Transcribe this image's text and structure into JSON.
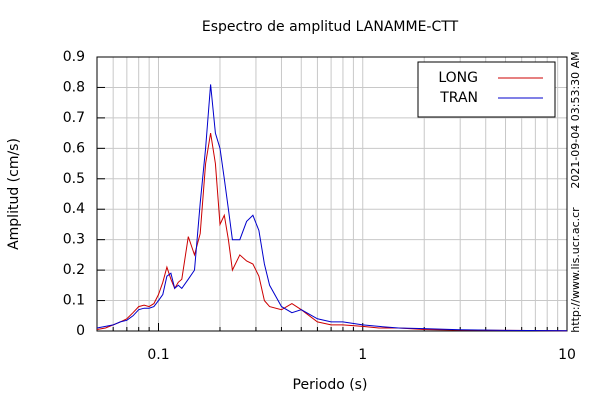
{
  "chart_data": {
    "type": "line",
    "title": "Espectro de amplitud LANAMME-CTT",
    "xlabel": "Periodo (s)",
    "ylabel": "Amplitud (cm/s)",
    "annotations": [
      "2021-09-04 03:53:30 AM",
      "http://www.lis.ucr.ac.cr"
    ],
    "xscale": "log",
    "grid": true,
    "legend": "upper right",
    "xlim": [
      0.05,
      10
    ],
    "ylim": [
      0,
      0.9
    ],
    "xticks": [
      0.1,
      1,
      10
    ],
    "xminorticks": [
      0.06,
      0.07,
      0.08,
      0.09,
      0.2,
      0.3,
      0.4,
      0.5,
      0.6,
      0.7,
      0.8,
      0.9,
      2,
      3,
      4,
      5,
      6,
      7,
      8,
      9
    ],
    "yticks": [
      0,
      0.1,
      0.2,
      0.3,
      0.4,
      0.5,
      0.6,
      0.7,
      0.8,
      0.9
    ],
    "x": [
      0.05,
      0.055,
      0.06,
      0.065,
      0.07,
      0.075,
      0.08,
      0.085,
      0.09,
      0.095,
      0.1,
      0.105,
      0.11,
      0.115,
      0.12,
      0.125,
      0.13,
      0.14,
      0.15,
      0.16,
      0.17,
      0.18,
      0.19,
      0.2,
      0.21,
      0.22,
      0.23,
      0.25,
      0.27,
      0.29,
      0.31,
      0.33,
      0.35,
      0.4,
      0.45,
      0.5,
      0.6,
      0.7,
      0.8,
      1,
      1.2,
      1.5,
      2,
      3,
      5,
      10
    ],
    "series": [
      {
        "name": "LONG",
        "color": "#cc0000",
        "values": [
          0.005,
          0.01,
          0.02,
          0.03,
          0.04,
          0.06,
          0.08,
          0.085,
          0.08,
          0.09,
          0.12,
          0.16,
          0.21,
          0.17,
          0.14,
          0.16,
          0.17,
          0.31,
          0.25,
          0.32,
          0.55,
          0.65,
          0.55,
          0.35,
          0.38,
          0.3,
          0.2,
          0.25,
          0.23,
          0.22,
          0.18,
          0.1,
          0.08,
          0.07,
          0.09,
          0.07,
          0.03,
          0.02,
          0.02,
          0.015,
          0.01,
          0.01,
          0.005,
          0.003,
          0.002,
          0.001
        ]
      },
      {
        "name": "TRAN",
        "color": "#0000cc",
        "values": [
          0.01,
          0.015,
          0.02,
          0.03,
          0.035,
          0.05,
          0.07,
          0.075,
          0.075,
          0.08,
          0.1,
          0.12,
          0.18,
          0.19,
          0.14,
          0.15,
          0.14,
          0.17,
          0.2,
          0.42,
          0.6,
          0.81,
          0.65,
          0.6,
          0.5,
          0.4,
          0.3,
          0.3,
          0.36,
          0.38,
          0.33,
          0.22,
          0.15,
          0.08,
          0.06,
          0.07,
          0.04,
          0.03,
          0.03,
          0.02,
          0.015,
          0.01,
          0.008,
          0.004,
          0.002,
          0.001
        ]
      }
    ]
  }
}
